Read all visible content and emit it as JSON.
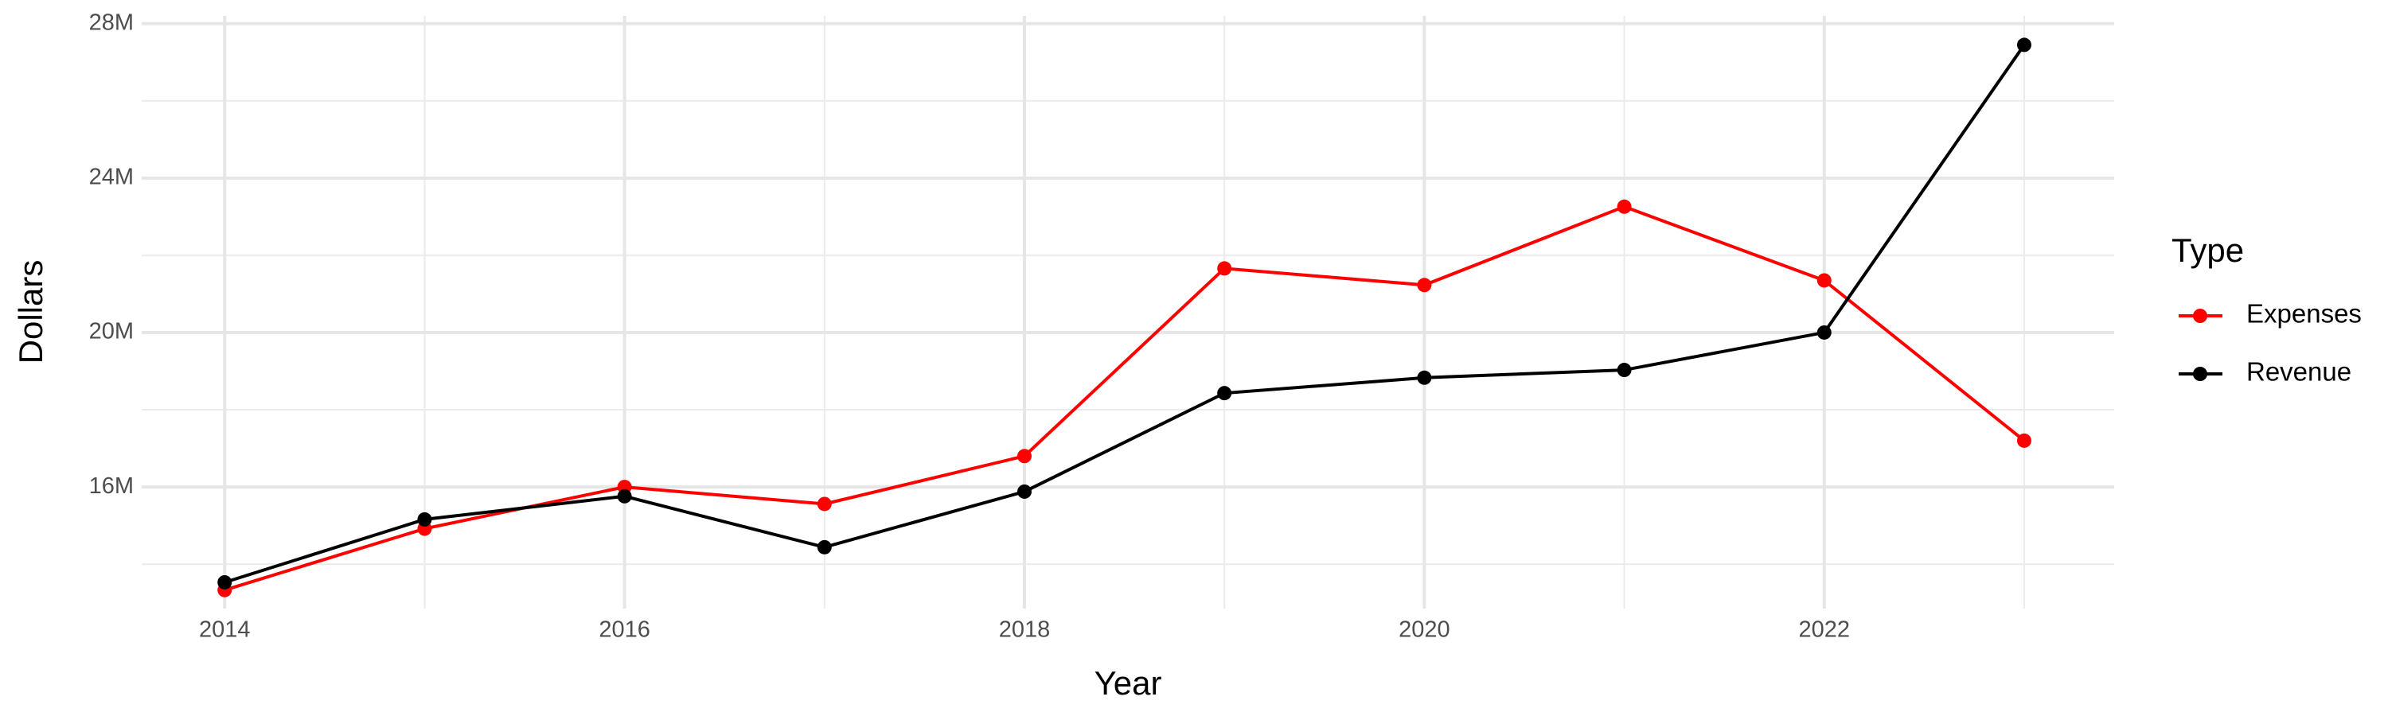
{
  "chart_data": {
    "type": "line",
    "x_label": "Year",
    "y_label": "Dollars",
    "legend_title": "Type",
    "x": [
      2014,
      2015,
      2016,
      2017,
      2018,
      2019,
      2020,
      2021,
      2022,
      2023
    ],
    "series": [
      {
        "name": "Expenses",
        "color": "#ff0000",
        "values": [
          13330000,
          14920000,
          16000000,
          15560000,
          16800000,
          21660000,
          21230000,
          23260000,
          21350000,
          17200000
        ]
      },
      {
        "name": "Revenue",
        "color": "#000000",
        "values": [
          13530000,
          15160000,
          15760000,
          14440000,
          15880000,
          18430000,
          18830000,
          19030000,
          20000000,
          27450000
        ]
      }
    ],
    "xlim": [
      2013.585,
      2023.45
    ],
    "xticks": [
      2014,
      2016,
      2018,
      2020,
      2022
    ],
    "minor_xticks": [
      2015,
      2017,
      2019,
      2021,
      2023
    ],
    "ylim": [
      12850000,
      28200000
    ],
    "yticks": [
      {
        "value": 16000000,
        "label": "16M"
      },
      {
        "value": 20000000,
        "label": "20M"
      },
      {
        "value": 24000000,
        "label": "24M"
      },
      {
        "value": 28000000,
        "label": "28M"
      }
    ],
    "minor_yticks": [
      14000000,
      18000000,
      22000000,
      26000000
    ],
    "grid": true,
    "legend": "right"
  }
}
